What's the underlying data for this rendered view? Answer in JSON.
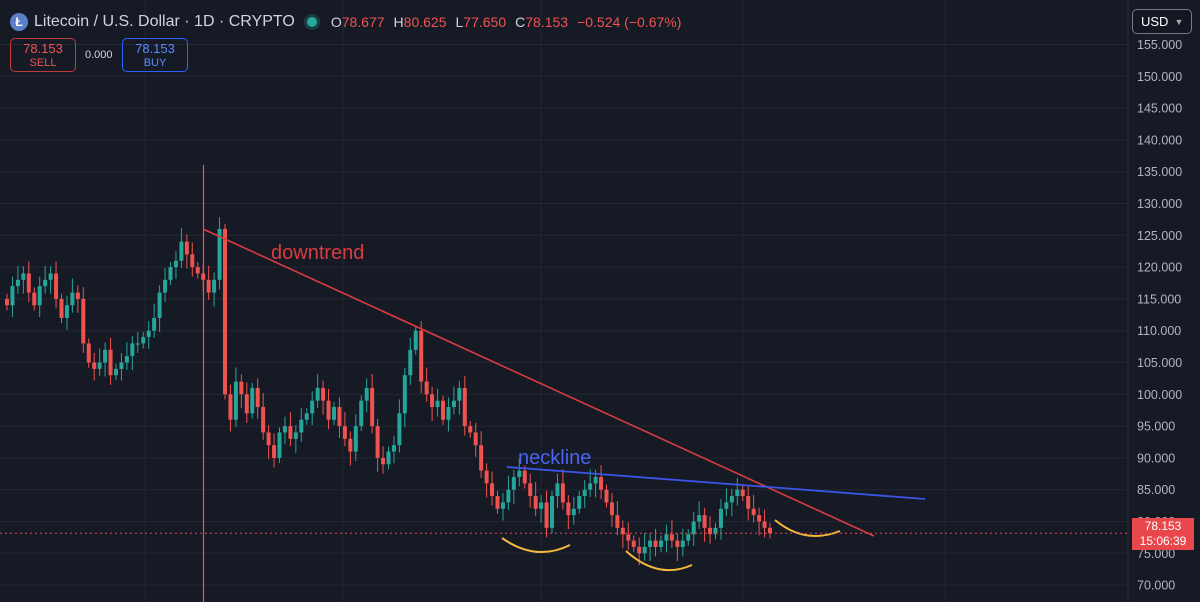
{
  "header": {
    "logo_letter": "Ł",
    "symbol_title": "Litecoin / U.S. Dollar · 1D · CRYPTO",
    "ohlc": [
      {
        "key": "O",
        "value": "78.677"
      },
      {
        "key": "H",
        "value": "80.625"
      },
      {
        "key": "L",
        "value": "77.650"
      },
      {
        "key": "C",
        "value": "78.153"
      }
    ],
    "change": "−0.524 (−0.67%)"
  },
  "trade": {
    "sell_price": "78.153",
    "sell_label": "SELL",
    "spread": "0.000",
    "buy_price": "78.153",
    "buy_label": "BUY"
  },
  "currency_select": "USD",
  "last_price_tag": {
    "price": "78.153",
    "countdown": "15:06:39"
  },
  "colors": {
    "up": "#26a69a",
    "down": "#ef5350",
    "trendline": "#d83c3e",
    "neckline": "#3b55e6",
    "arcs": "#f5b83c"
  },
  "chart_data": {
    "type": "candlestick",
    "y_axis": {
      "ticks": [
        155,
        150,
        145,
        140,
        135,
        130,
        125,
        120,
        115,
        110,
        105,
        100,
        95,
        90,
        85,
        80,
        75,
        70
      ],
      "tick_labels": [
        "155.000",
        "150.000",
        "145.000",
        "140.000",
        "135.000",
        "130.000",
        "125.000",
        "120.000",
        "115.000",
        "110.000",
        "105.000",
        "100.000",
        "95.000",
        "90.000",
        "85.000",
        "80.000",
        "75.000",
        "70.000"
      ],
      "range": [
        66.5,
        156.5
      ]
    },
    "last_price": 78.153,
    "close_series_approx": [
      114,
      117,
      118,
      119,
      116,
      114,
      117,
      118,
      119,
      115,
      112,
      114,
      116,
      115,
      108,
      105,
      104,
      105,
      107,
      103,
      104,
      105,
      106,
      108,
      108,
      109,
      110,
      112,
      116,
      118,
      120,
      121,
      124,
      122,
      120,
      119,
      118,
      116,
      118,
      126,
      100,
      96,
      102,
      100,
      97,
      101,
      98,
      94,
      92,
      90,
      94,
      95,
      93,
      94,
      96,
      97,
      99,
      101,
      99,
      96,
      98,
      95,
      93,
      91,
      95,
      99,
      101,
      95,
      90,
      89,
      91,
      92,
      97,
      103,
      107,
      110,
      102,
      100,
      98,
      99,
      96,
      98,
      99,
      101,
      95,
      94,
      92,
      88,
      86,
      84,
      82,
      83,
      85,
      87,
      88,
      86,
      84,
      82,
      83,
      79,
      84,
      86,
      83,
      81,
      82,
      84,
      85,
      86,
      87,
      85,
      83,
      81,
      79,
      78,
      77,
      76,
      75,
      76,
      77,
      76,
      77,
      78,
      77,
      76,
      77,
      78,
      80,
      81,
      79,
      78,
      79,
      82,
      83,
      84,
      85,
      84,
      82,
      81,
      80,
      79,
      78.153
    ],
    "annotations": {
      "downtrend_label": "downtrend",
      "neckline_label": "neckline"
    }
  }
}
